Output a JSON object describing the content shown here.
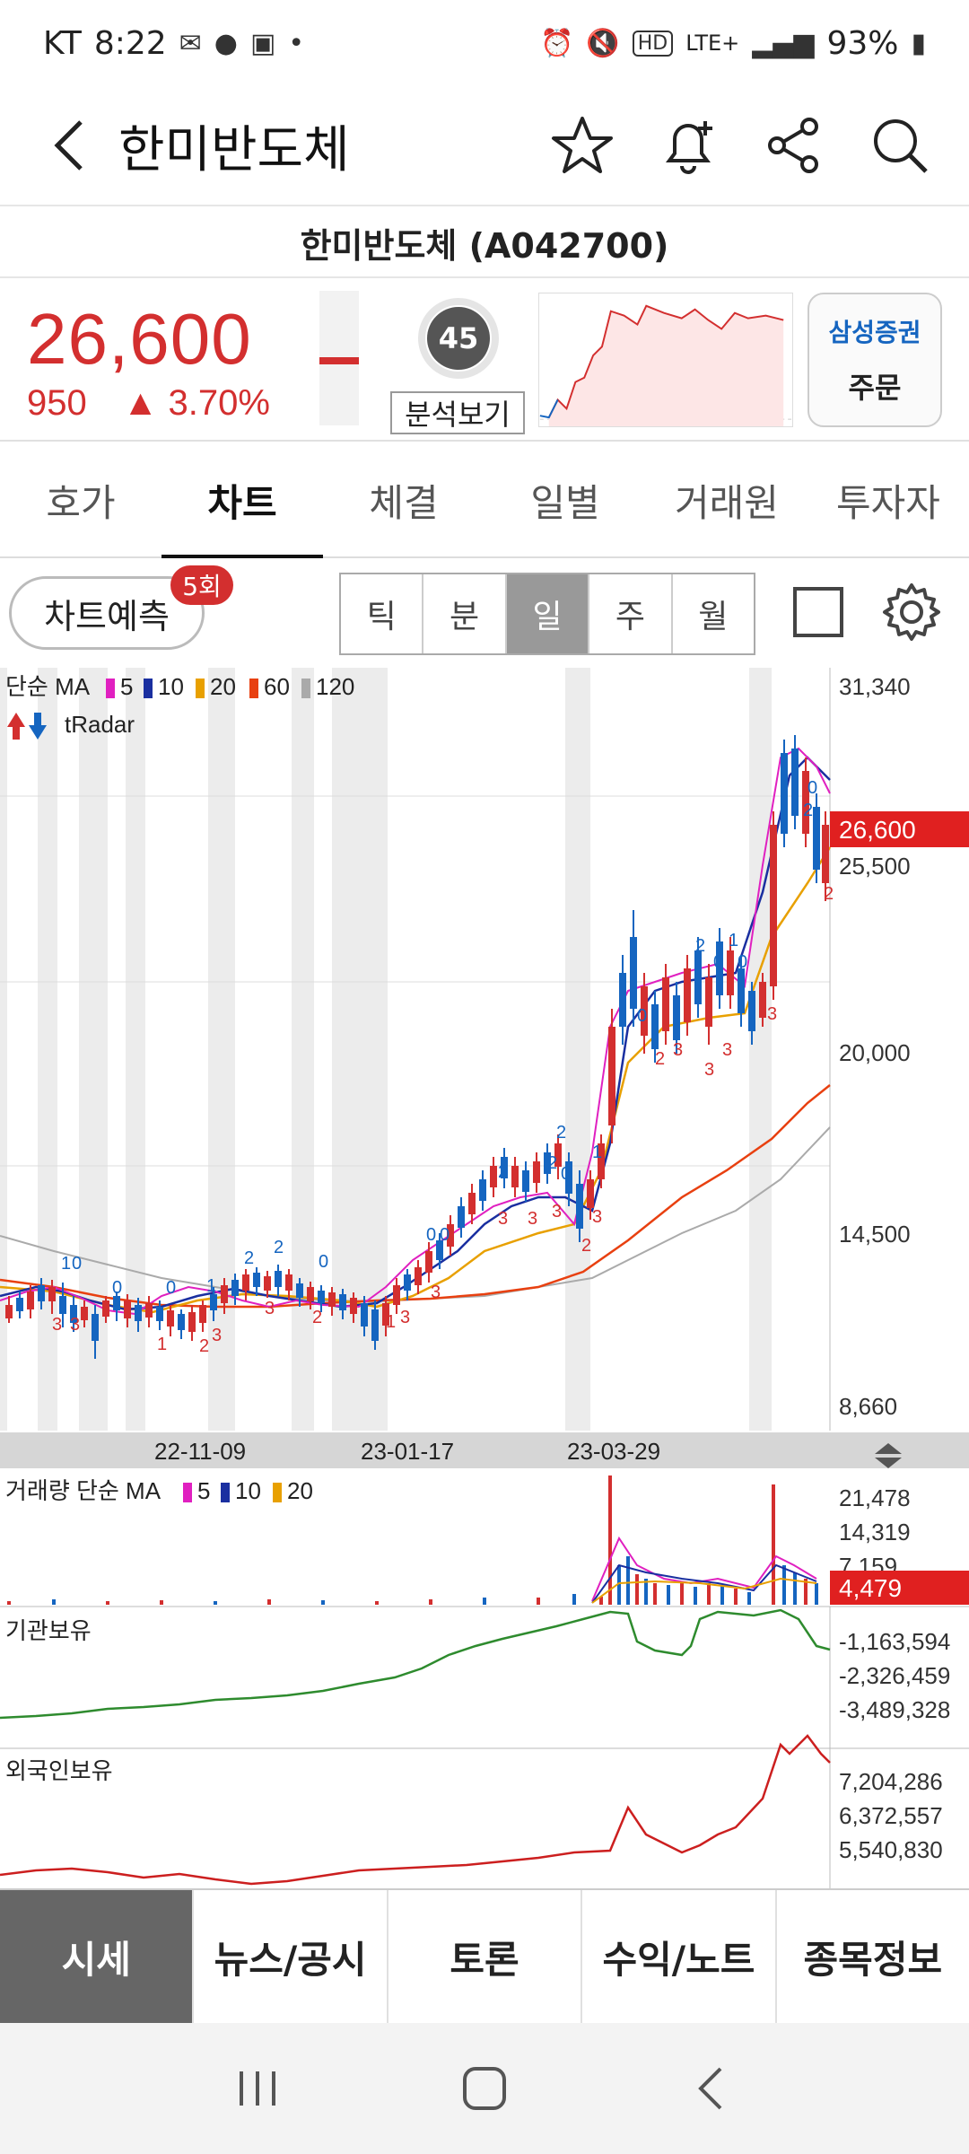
{
  "status_bar": {
    "carrier": "KT",
    "time": "8:22",
    "network": "LTE+",
    "battery": "93%"
  },
  "header": {
    "title": "한미반도체"
  },
  "stock": {
    "full_name": "한미반도체 (A042700)",
    "price": "26,600",
    "change": "950",
    "change_pct": "3.70%",
    "score": "45",
    "analysis_label": "분석보기",
    "broker": "삼성증권",
    "order_label": "주문"
  },
  "tabs": [
    "호가",
    "차트",
    "체결",
    "일별",
    "거래원",
    "투자자"
  ],
  "chart_controls": {
    "predict_label": "차트예측",
    "predict_badge": "5회",
    "periods": [
      "틱",
      "분",
      "일",
      "주",
      "월"
    ],
    "active_period": "일"
  },
  "price_panel": {
    "legend_prefix": "단순 MA",
    "ma_periods": [
      "5",
      "10",
      "20",
      "60",
      "120"
    ],
    "ma_colors": [
      "#e020c0",
      "#1a2fa0",
      "#e8a000",
      "#e84010",
      "#aaaaaa"
    ],
    "radar_label": "tRadar",
    "y_labels": [
      "31,340",
      "25,500",
      "20,000",
      "14,500",
      "8,660"
    ],
    "current_price_tag": "26,600",
    "date_labels": [
      "22-11-09",
      "23-01-17",
      "23-03-29"
    ]
  },
  "volume_panel": {
    "legend_prefix": "거래량 단순 MA",
    "ma_periods": [
      "5",
      "10",
      "20"
    ],
    "y_labels": [
      "21,478",
      "14,319",
      "7,159"
    ],
    "current_tag": "4,479"
  },
  "inst_panel": {
    "label": "기관보유",
    "y_labels": [
      "-1,163,594",
      "-2,326,459",
      "-3,489,328"
    ]
  },
  "foreign_panel": {
    "label": "외국인보유",
    "y_labels": [
      "7,204,286",
      "6,372,557",
      "5,540,830"
    ]
  },
  "bottom_nav": [
    "시세",
    "뉴스/공시",
    "토론",
    "수익/노트",
    "종목정보"
  ],
  "colors": {
    "up": "#d32f2f",
    "down": "#1565c0",
    "accent_blue": "#1565c0"
  }
}
